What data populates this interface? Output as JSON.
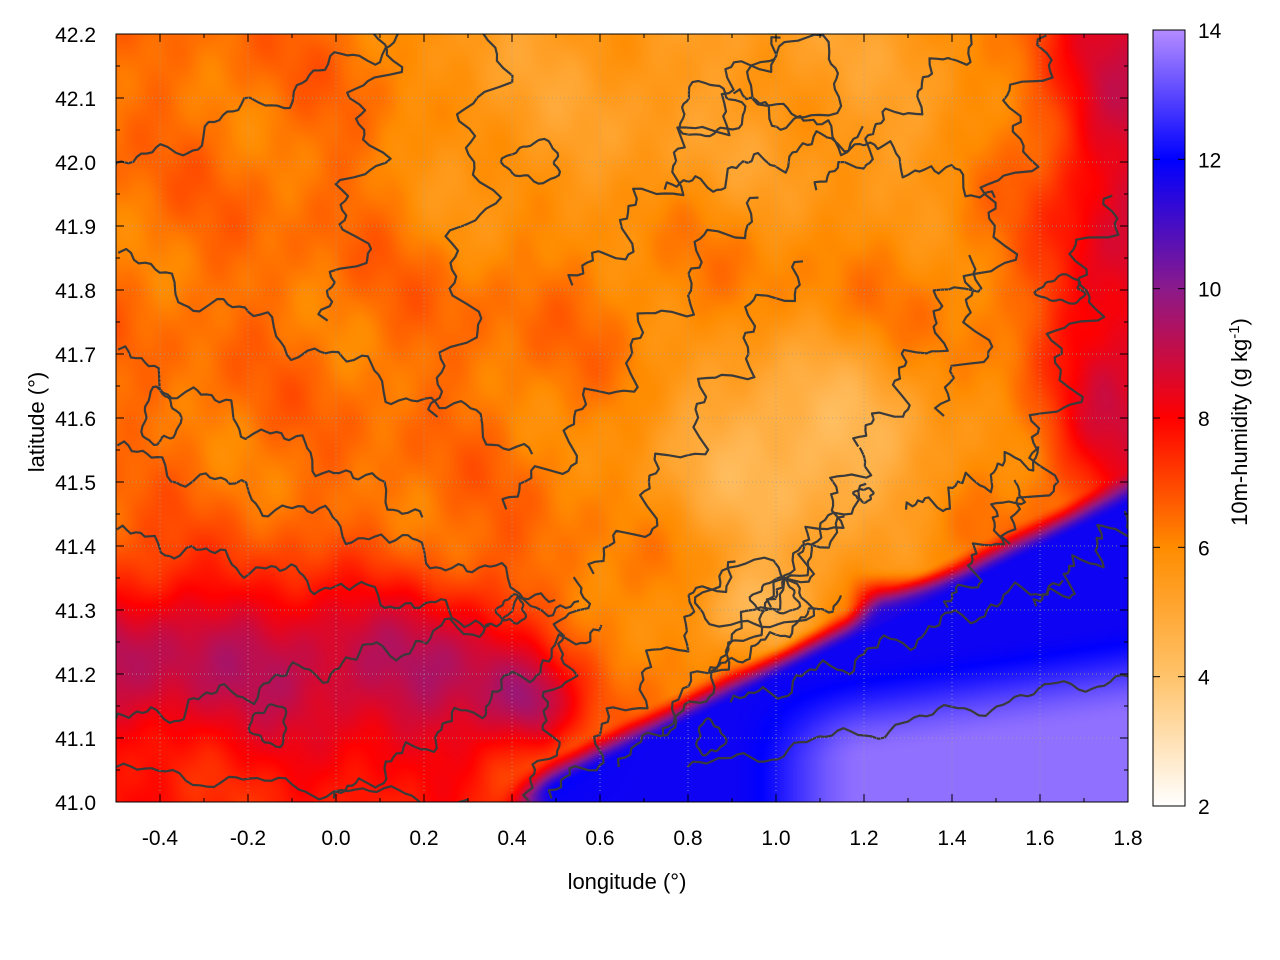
{
  "chart_data": {
    "type": "heatmap",
    "title": "",
    "xlabel": "longitude (°)",
    "ylabel": "latitude (°)",
    "colorbar_label": "10m-humidity (g kg",
    "colorbar_label_sup": "-1",
    "colorbar_label_end": ")",
    "xlim": [
      -0.5,
      1.8
    ],
    "ylim": [
      41.0,
      42.2
    ],
    "clim": [
      2,
      14
    ],
    "x_ticks": [
      {
        "value": -0.4,
        "label": "-0.4"
      },
      {
        "value": -0.2,
        "label": "-0.2"
      },
      {
        "value": 0.0,
        "label": "0.0"
      },
      {
        "value": 0.2,
        "label": "0.2"
      },
      {
        "value": 0.4,
        "label": "0.4"
      },
      {
        "value": 0.6,
        "label": "0.6"
      },
      {
        "value": 0.8,
        "label": "0.8"
      },
      {
        "value": 1.0,
        "label": "1.0"
      },
      {
        "value": 1.2,
        "label": "1.2"
      },
      {
        "value": 1.4,
        "label": "1.4"
      },
      {
        "value": 1.6,
        "label": "1.6"
      },
      {
        "value": 1.8,
        "label": "1.8"
      }
    ],
    "y_ticks": [
      {
        "value": 41.0,
        "label": "41.0"
      },
      {
        "value": 41.1,
        "label": "41.1"
      },
      {
        "value": 41.2,
        "label": "41.2"
      },
      {
        "value": 41.3,
        "label": "41.3"
      },
      {
        "value": 41.4,
        "label": "41.4"
      },
      {
        "value": 41.5,
        "label": "41.5"
      },
      {
        "value": 41.6,
        "label": "41.6"
      },
      {
        "value": 41.7,
        "label": "41.7"
      },
      {
        "value": 41.8,
        "label": "41.8"
      },
      {
        "value": 41.9,
        "label": "41.9"
      },
      {
        "value": 42.0,
        "label": "42.0"
      },
      {
        "value": 42.1,
        "label": "42.1"
      },
      {
        "value": 42.2,
        "label": "42.2"
      }
    ],
    "colorbar_ticks": [
      {
        "value": 2,
        "label": "2"
      },
      {
        "value": 4,
        "label": "4"
      },
      {
        "value": 6,
        "label": "6"
      },
      {
        "value": 8,
        "label": "8"
      },
      {
        "value": 10,
        "label": "10"
      },
      {
        "value": 12,
        "label": "12"
      },
      {
        "value": 14,
        "label": "14"
      }
    ],
    "colormap": [
      {
        "value": 2,
        "color": "#ffffff"
      },
      {
        "value": 4,
        "color": "#ffc36a"
      },
      {
        "value": 6,
        "color": "#ff8c00"
      },
      {
        "value": 8,
        "color": "#ff0000"
      },
      {
        "value": 10,
        "color": "#8b1a8b"
      },
      {
        "value": 12,
        "color": "#0000ff"
      },
      {
        "value": 14,
        "color": "#b48cff"
      }
    ],
    "grid": true,
    "contours": true,
    "field": {
      "description_grid": [
        41.0,
        42.2,
        -0.5,
        1.8
      ],
      "background_value": 6.3,
      "features": [
        {
          "kind": "sea",
          "value": 13.5,
          "x": [
            0.85,
            1.8
          ],
          "y": [
            41.0,
            41.25
          ]
        },
        {
          "kind": "coastal_blue",
          "value": 11.8,
          "x": [
            0.3,
            0.95
          ],
          "y": [
            41.0,
            41.25
          ]
        },
        {
          "kind": "coastal_blue_east",
          "value": 11.5,
          "x": [
            1.15,
            1.8
          ],
          "y": [
            41.2,
            41.38
          ]
        },
        {
          "kind": "red_band",
          "value": 8.5,
          "x": [
            -0.5,
            0.45
          ],
          "y": [
            41.0,
            41.35
          ]
        },
        {
          "kind": "red_east",
          "value": 8.0,
          "x": [
            1.45,
            1.8
          ],
          "y": [
            41.35,
            42.2
          ]
        },
        {
          "kind": "dry_plateau",
          "value": 4.5,
          "x": [
            0.6,
            1.45
          ],
          "y": [
            41.35,
            41.8
          ]
        },
        {
          "kind": "dry_north",
          "value": 5.3,
          "x": [
            0.0,
            0.9
          ],
          "y": [
            41.8,
            42.2
          ]
        }
      ]
    }
  }
}
